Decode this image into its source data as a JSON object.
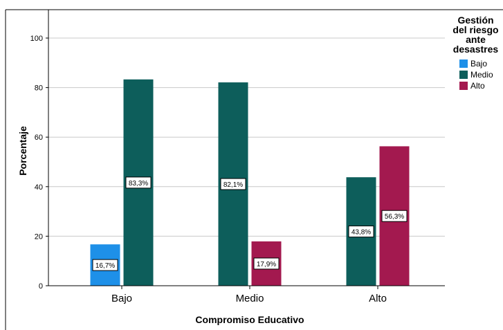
{
  "chart_data": {
    "type": "bar",
    "title": "",
    "xlabel": "Compromiso Educativo",
    "ylabel": "Porcentaje",
    "categories": [
      "Bajo",
      "Medio",
      "Alto"
    ],
    "ylim": [
      0,
      110
    ],
    "yticks": [
      0,
      20,
      40,
      60,
      80,
      100
    ],
    "grid": true,
    "legend": {
      "title_lines": [
        "Gestión",
        "del riesgo",
        "ante",
        "desastres"
      ],
      "placement": "right"
    },
    "series": [
      {
        "name": "Bajo",
        "color": "#1e90e8",
        "values": [
          16.7,
          null,
          null
        ],
        "labels": [
          "16,7%",
          null,
          null
        ]
      },
      {
        "name": "Medio",
        "color": "#0d5e5b",
        "values": [
          83.3,
          82.1,
          43.8
        ],
        "labels": [
          "83,3%",
          "82,1%",
          "43,8%"
        ]
      },
      {
        "name": "Alto",
        "color": "#a3194f",
        "values": [
          null,
          17.9,
          56.3
        ],
        "labels": [
          null,
          "17,9%",
          "56,3%"
        ]
      }
    ]
  }
}
